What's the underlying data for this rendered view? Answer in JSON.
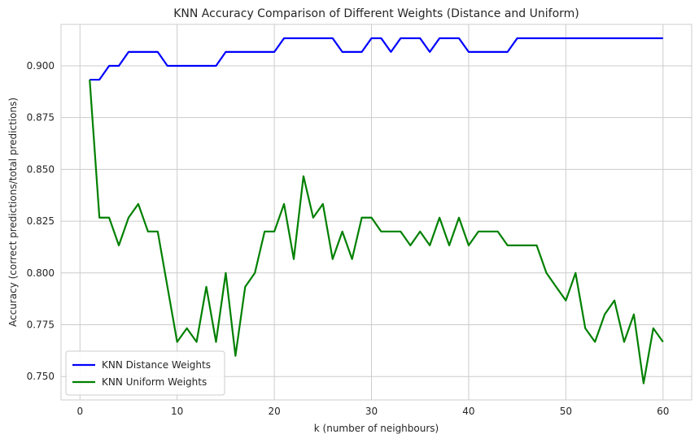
{
  "chart_data": {
    "type": "line",
    "title": "KNN Accuracy Comparison of Different Weights (Distance and Uniform)",
    "xlabel": "k (number of neighbours)",
    "ylabel": "Accuracy (correct predictions/total predictions)",
    "xlim": [
      -1.95,
      62.95
    ],
    "ylim": [
      0.7387,
      0.92
    ],
    "xticks": [
      0,
      10,
      20,
      30,
      40,
      50,
      60
    ],
    "yticks": [
      0.75,
      0.775,
      0.8,
      0.825,
      0.85,
      0.875,
      0.9
    ],
    "ytick_labels": [
      "0.750",
      "0.775",
      "0.800",
      "0.825",
      "0.850",
      "0.875",
      "0.900"
    ],
    "grid": true,
    "legend": "lower-left",
    "x": [
      1,
      2,
      3,
      4,
      5,
      6,
      7,
      8,
      9,
      10,
      11,
      12,
      13,
      14,
      15,
      16,
      17,
      18,
      19,
      20,
      21,
      22,
      23,
      24,
      25,
      26,
      27,
      28,
      29,
      30,
      31,
      32,
      33,
      34,
      35,
      36,
      37,
      38,
      39,
      40,
      41,
      42,
      43,
      44,
      45,
      46,
      47,
      48,
      49,
      50,
      51,
      52,
      53,
      54,
      55,
      56,
      57,
      58,
      59,
      60
    ],
    "series": [
      {
        "name": "KNN Distance Weights",
        "color": "#0000ff",
        "values": [
          0.8933,
          0.8933,
          0.9,
          0.9,
          0.9067,
          0.9067,
          0.9067,
          0.9067,
          0.9,
          0.9,
          0.9,
          0.9,
          0.9,
          0.9,
          0.9067,
          0.9067,
          0.9067,
          0.9067,
          0.9067,
          0.9067,
          0.9133,
          0.9133,
          0.9133,
          0.9133,
          0.9133,
          0.9133,
          0.9067,
          0.9067,
          0.9067,
          0.9133,
          0.9133,
          0.9067,
          0.9133,
          0.9133,
          0.9133,
          0.9067,
          0.9133,
          0.9133,
          0.9133,
          0.9067,
          0.9067,
          0.9067,
          0.9067,
          0.9067,
          0.9133,
          0.9133,
          0.9133,
          0.9133,
          0.9133,
          0.9133,
          0.9133,
          0.9133,
          0.9133,
          0.9133,
          0.9133,
          0.9133,
          0.9133,
          0.9133,
          0.9133,
          0.9133
        ]
      },
      {
        "name": "KNN Uniform Weights",
        "color": "#008000",
        "values": [
          0.8933,
          0.8267,
          0.8267,
          0.8133,
          0.8267,
          0.8333,
          0.82,
          0.82,
          0.7933,
          0.7667,
          0.7733,
          0.7667,
          0.7933,
          0.7667,
          0.8,
          0.76,
          0.7933,
          0.8,
          0.82,
          0.82,
          0.8333,
          0.8067,
          0.8467,
          0.8267,
          0.8333,
          0.8067,
          0.82,
          0.8067,
          0.8267,
          0.8267,
          0.82,
          0.82,
          0.82,
          0.8133,
          0.82,
          0.8133,
          0.8267,
          0.8133,
          0.8267,
          0.8133,
          0.82,
          0.82,
          0.82,
          0.8133,
          0.8133,
          0.8133,
          0.8133,
          0.8,
          0.7933,
          0.7867,
          0.8,
          0.7733,
          0.7667,
          0.78,
          0.7867,
          0.7667,
          0.78,
          0.7467,
          0.7733,
          0.7667
        ]
      }
    ]
  }
}
